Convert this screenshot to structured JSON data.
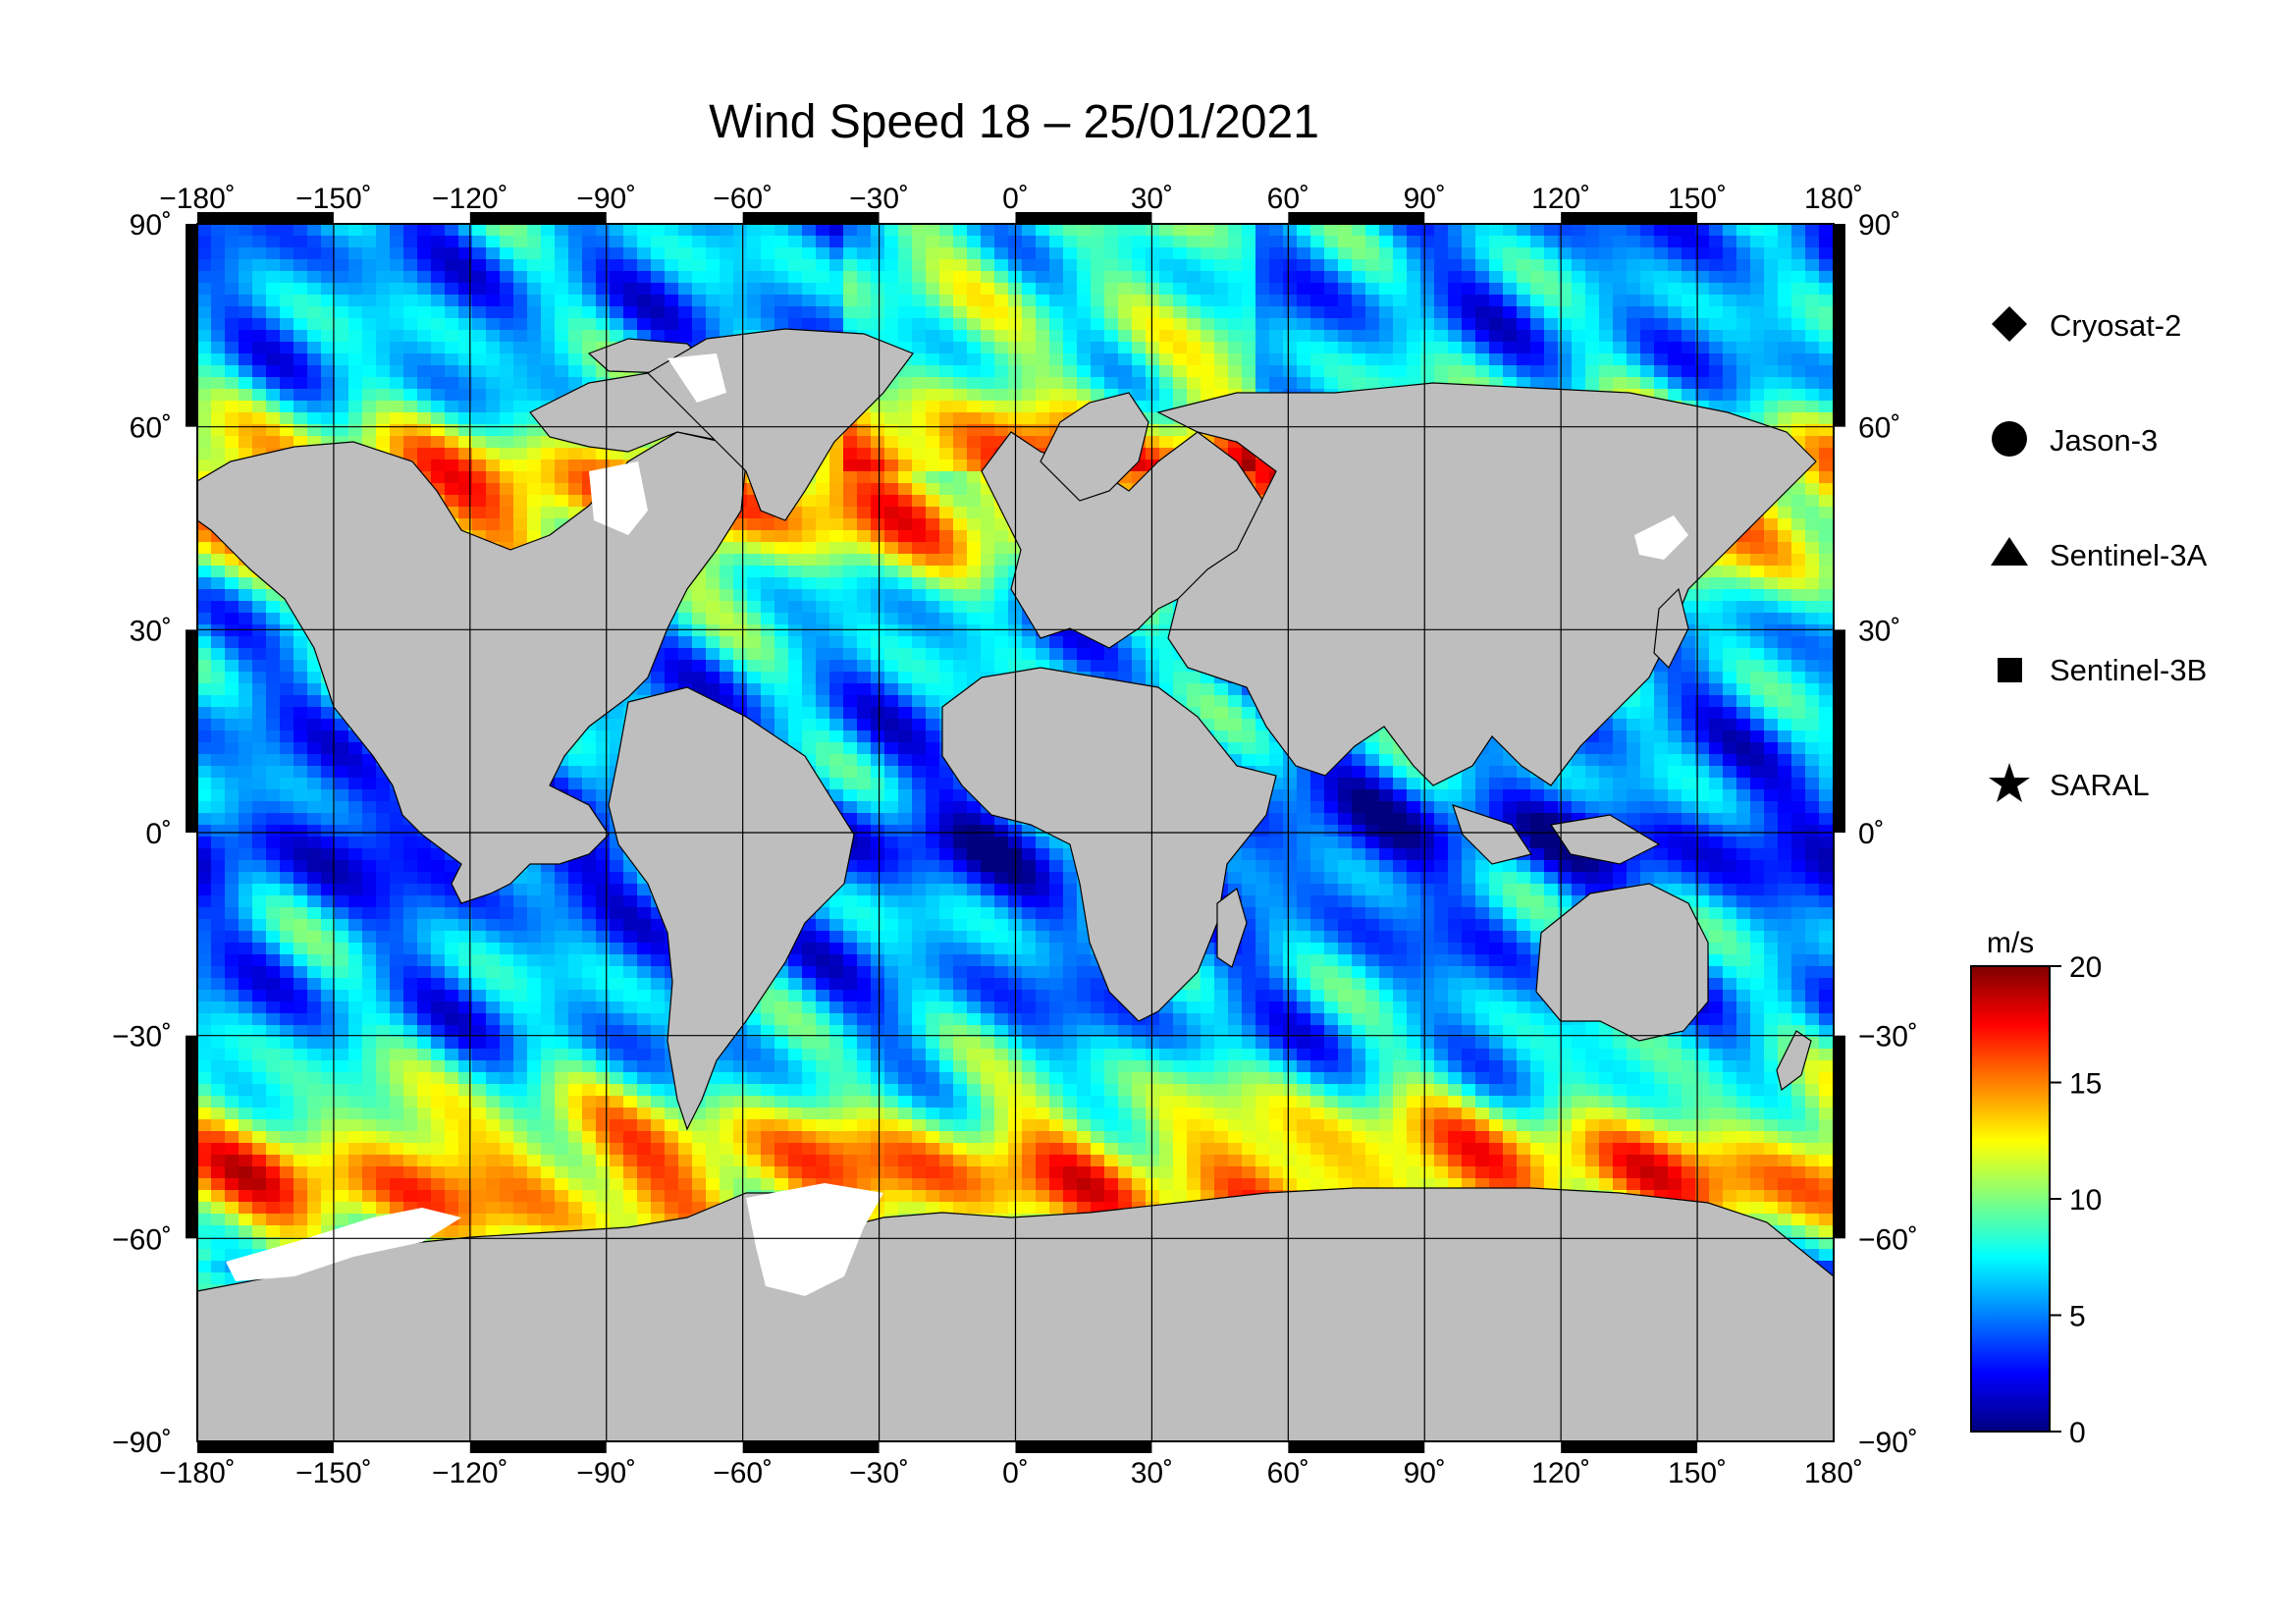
{
  "title": "Wind Speed 18 – 25/01/2021",
  "map": {
    "projection": "equirectangular",
    "lon_range": [
      -180,
      180
    ],
    "lat_range": [
      -90,
      90
    ],
    "grid_step_lon": 30,
    "grid_step_lat": 30,
    "lon_ticks": [
      {
        "value": -180,
        "label": "−180˚"
      },
      {
        "value": -150,
        "label": "−150˚"
      },
      {
        "value": -120,
        "label": "−120˚"
      },
      {
        "value": -90,
        "label": "−90˚"
      },
      {
        "value": -60,
        "label": "−60˚"
      },
      {
        "value": -30,
        "label": "−30˚"
      },
      {
        "value": 0,
        "label": "0˚"
      },
      {
        "value": 30,
        "label": "30˚"
      },
      {
        "value": 60,
        "label": "60˚"
      },
      {
        "value": 90,
        "label": "90˚"
      },
      {
        "value": 120,
        "label": "120˚"
      },
      {
        "value": 150,
        "label": "150˚"
      },
      {
        "value": 180,
        "label": "180˚"
      }
    ],
    "lat_ticks": [
      {
        "value": 90,
        "label": "90˚"
      },
      {
        "value": 60,
        "label": "60˚"
      },
      {
        "value": 30,
        "label": "30˚"
      },
      {
        "value": 0,
        "label": "0˚"
      },
      {
        "value": -30,
        "label": "−30˚"
      },
      {
        "value": -60,
        "label": "−60˚"
      },
      {
        "value": -90,
        "label": "−90˚"
      }
    ],
    "land_color": "#bebebe",
    "ice_color": "#ffffff",
    "grid_color": "#000000"
  },
  "legend": {
    "items": [
      {
        "symbol": "diamond-icon",
        "label": "Cryosat-2"
      },
      {
        "symbol": "circle-icon",
        "label": "Jason-3"
      },
      {
        "symbol": "triangle-icon",
        "label": "Sentinel-3A"
      },
      {
        "symbol": "square-icon",
        "label": "Sentinel-3B"
      },
      {
        "symbol": "star-icon",
        "label": "SARAL"
      }
    ]
  },
  "colorbar": {
    "unit": "m/s",
    "min": 0,
    "max": 20,
    "ticks": [
      {
        "value": 20,
        "label": "20"
      },
      {
        "value": 15,
        "label": "15"
      },
      {
        "value": 10,
        "label": "10"
      },
      {
        "value": 5,
        "label": "5"
      },
      {
        "value": 0,
        "label": "0"
      }
    ],
    "colors": [
      "#00007f",
      "#0000ff",
      "#007fff",
      "#00ffff",
      "#7fff7f",
      "#ffff00",
      "#ff7f00",
      "#ff0000",
      "#7f0000"
    ]
  }
}
